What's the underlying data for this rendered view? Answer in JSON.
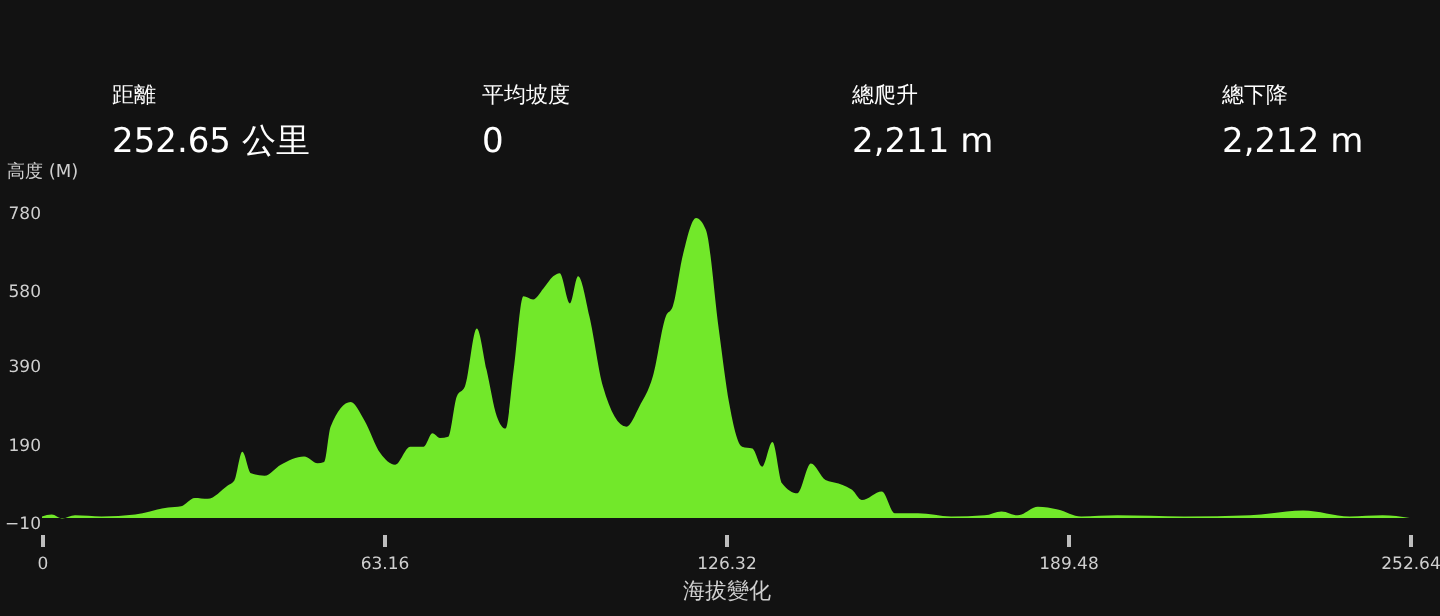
{
  "chart_data": {
    "type": "area",
    "xlabel": "海拔變化",
    "ylabel": "高度 (M)",
    "annotations": [
      "距離",
      "252.65 公里",
      "平均坡度",
      "0",
      "總爬升",
      "2,211 m",
      "總下降",
      "2,212 m"
    ],
    "xlim": [
      0,
      252.64
    ],
    "xticks": [
      0,
      63.16,
      126.32,
      189.48,
      252.64
    ],
    "ylim": [
      -10,
      780
    ],
    "yticks": [
      -10,
      190,
      390,
      580,
      780
    ],
    "grid": false,
    "series": [
      {
        "color": "#72e82a",
        "x": [
          0,
          1.8,
          3.7,
          6.1,
          11,
          17.2,
          23.3,
          25.7,
          28.2,
          30.6,
          34.3,
          35.5,
          37.0,
          38.6,
          41.1,
          44.1,
          48.4,
          50.9,
          52.1,
          53.3,
          57.0,
          59.5,
          62.5,
          65.2,
          68.0,
          70.5,
          72.1,
          73.5,
          75.0,
          76.6,
          78.1,
          80.3,
          82.1,
          84.0,
          85.6,
          87.1,
          88.9,
          90.7,
          92.6,
          94.4,
          95.6,
          97.5,
          99.0,
          101.1,
          103.6,
          107.9,
          110.3,
          112.8,
          115.2,
          116.5,
          118.3,
          120.8,
          122.6,
          125.0,
          126.9,
          129.3,
          131.2,
          133.0,
          134.9,
          136.7,
          139.5,
          142.0,
          144.7,
          147.1,
          148.6,
          149.6,
          151.4,
          155.1,
          157.5,
          161.8,
          167.9,
          174.1,
          177.2,
          180.2,
          183.9,
          187.6,
          191.9,
          198.6,
          210.9,
          223.1,
          232.9,
          241.5,
          247.6,
          252.6
        ],
        "values": [
          4,
          9,
          -1,
          7,
          4,
          9,
          27,
          30,
          51,
          49,
          83,
          95,
          169,
          114,
          108,
          136,
          157,
          140,
          143,
          233,
          296,
          250,
          165,
          136,
          182,
          182,
          216,
          204,
          207,
          310,
          335,
          483,
          378,
          259,
          228,
          378,
          565,
          557,
          585,
          616,
          624,
          547,
          616,
          514,
          335,
          233,
          284,
          361,
          514,
          540,
          667,
          765,
          735,
          480,
          293,
          182,
          177,
          131,
          194,
          88,
          63,
          139,
          97,
          88,
          80,
          72,
          46,
          68,
          12,
          12,
          4,
          7,
          17,
          7,
          29,
          22,
          4,
          7,
          4,
          7,
          19,
          4,
          7,
          0
        ]
      }
    ]
  }
}
